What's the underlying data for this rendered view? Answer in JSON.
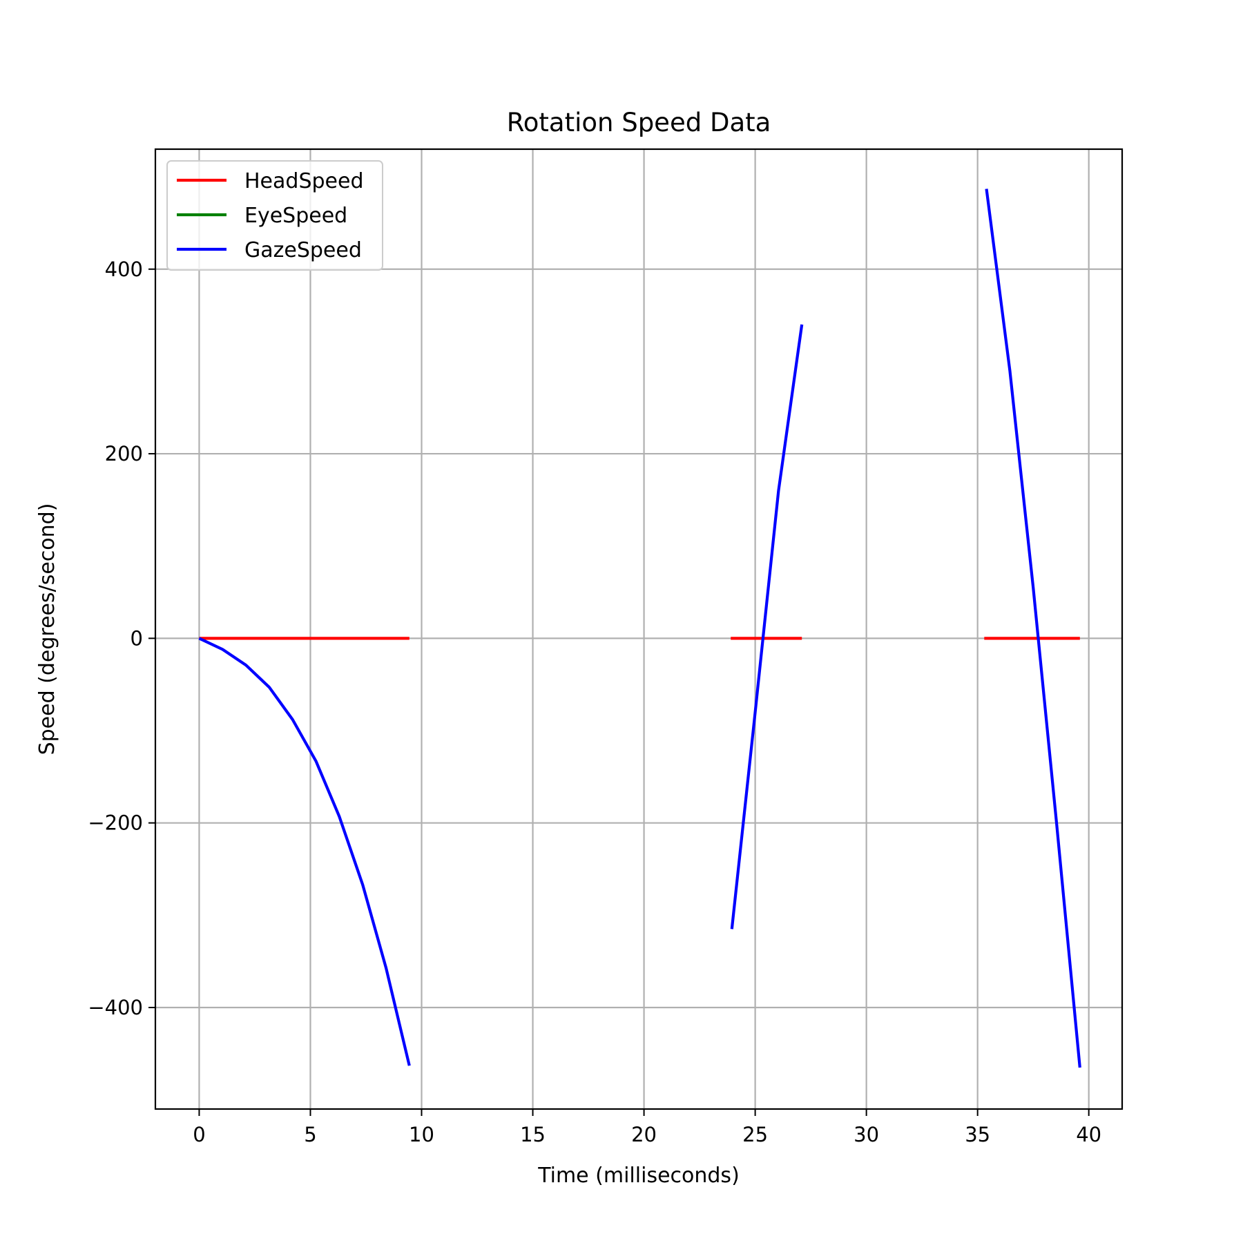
{
  "chart_data": {
    "type": "line",
    "title": "Rotation Speed Data",
    "xlabel": "Time (milliseconds)",
    "ylabel": "Speed (degrees/second)",
    "xlim": [
      -1.97,
      41.5
    ],
    "ylim": [
      -510,
      530
    ],
    "xticks": [
      0,
      5,
      10,
      15,
      20,
      25,
      30,
      35,
      40
    ],
    "xtick_labels": [
      "0",
      "5",
      "10",
      "15",
      "20",
      "25",
      "30",
      "35",
      "40"
    ],
    "yticks": [
      -400,
      -200,
      0,
      200,
      400
    ],
    "ytick_labels": [
      "−400",
      "−200",
      "0",
      "200",
      "400"
    ],
    "grid": true,
    "legend_position": "top-left",
    "series": [
      {
        "name": "HeadSpeed",
        "color": "#ff0000",
        "segments": [
          [
            [
              0,
              0
            ],
            [
              9.45,
              0
            ]
          ],
          [
            [
              23.9,
              0
            ],
            [
              27.1,
              0
            ]
          ],
          [
            [
              35.3,
              0
            ],
            [
              39.6,
              0
            ]
          ]
        ]
      },
      {
        "name": "EyeSpeed",
        "color": "#008000",
        "segments": []
      },
      {
        "name": "GazeSpeed",
        "color": "#0000ff",
        "segments": [
          [
            [
              0,
              0
            ],
            [
              1.05,
              -12
            ],
            [
              2.1,
              -29
            ],
            [
              3.15,
              -53
            ],
            [
              4.2,
              -88
            ],
            [
              5.25,
              -133
            ],
            [
              6.3,
              -193
            ],
            [
              7.35,
              -267
            ],
            [
              8.4,
              -357
            ],
            [
              9.45,
              -463
            ]
          ],
          [
            [
              23.95,
              -315
            ],
            [
              25.0,
              -80
            ],
            [
              26.05,
              160
            ],
            [
              27.1,
              340
            ]
          ],
          [
            [
              35.4,
              487
            ],
            [
              36.45,
              290
            ],
            [
              37.5,
              55
            ],
            [
              38.55,
              -200
            ],
            [
              39.6,
              -465
            ]
          ]
        ]
      }
    ]
  }
}
